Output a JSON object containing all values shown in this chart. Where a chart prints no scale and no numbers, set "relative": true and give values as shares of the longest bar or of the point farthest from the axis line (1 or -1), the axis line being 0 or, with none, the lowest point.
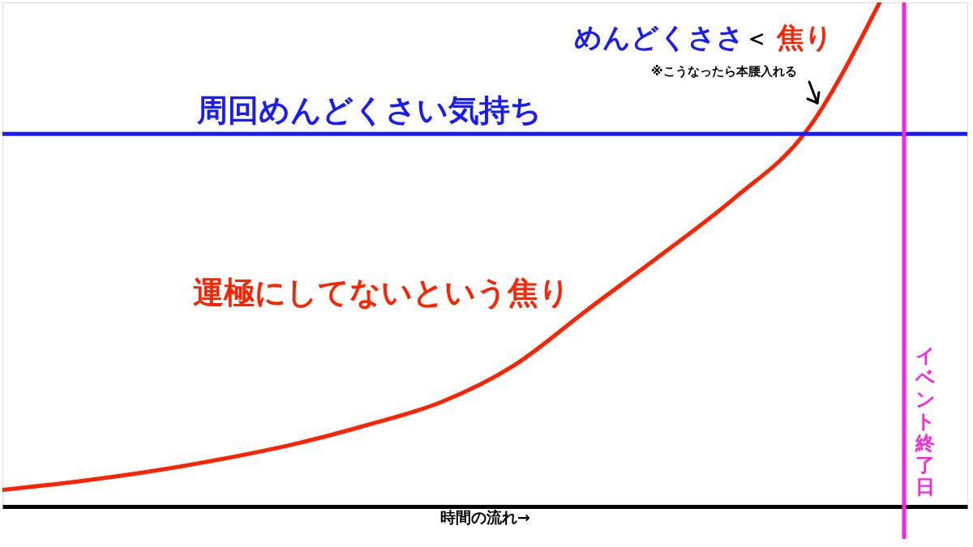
{
  "chart_data": {
    "type": "line",
    "relative": true,
    "tick_labels": false,
    "grid": false,
    "marker": "none",
    "line_style": "solid",
    "xlabel": "時間の流れ→",
    "categories": [
      null,
      null,
      null,
      null,
      null,
      null,
      null,
      null,
      null,
      null,
      null,
      null,
      null
    ],
    "series": [
      {
        "name": "運極にしてないという焦り",
        "color": "#ff2200",
        "values": [
          0.033,
          0.049,
          0.069,
          0.094,
          0.124,
          0.162,
          0.207,
          0.28,
          0.39,
          0.498,
          0.61,
          0.745,
          1
        ]
      }
    ],
    "ref_lines": [
      {
        "axis": "y",
        "value": 0.739,
        "label": "周回めんどくさい気持ち",
        "color": "#1a1aff"
      }
    ],
    "annotations": [
      "めんどくささ",
      "＜",
      "焦り",
      "※こうなったら本腰入れる",
      "イベント終了日"
    ]
  }
}
